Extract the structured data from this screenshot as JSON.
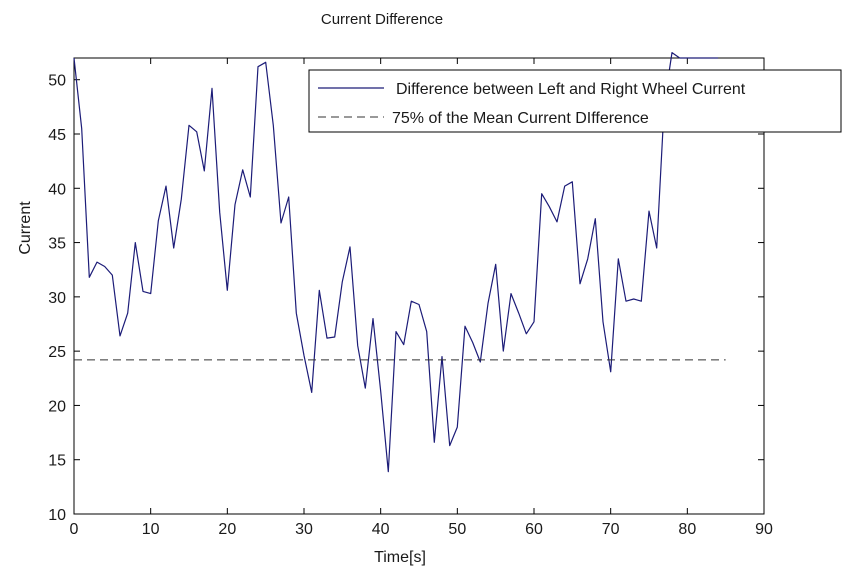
{
  "chart_data": {
    "type": "line",
    "title": "Current Difference",
    "xlabel": "Time[s]",
    "ylabel": "Current",
    "xlim": [
      0,
      90
    ],
    "ylim": [
      10,
      52
    ],
    "xticks": [
      0,
      10,
      20,
      30,
      40,
      50,
      60,
      70,
      80,
      90
    ],
    "yticks": [
      10,
      15,
      20,
      25,
      30,
      35,
      40,
      45,
      50
    ],
    "grid": false,
    "legend_position": "top-right",
    "series": [
      {
        "name": "Difference between Left and Right Wheel Current",
        "style": "solid",
        "color": "#1c1c78",
        "x": [
          0,
          1,
          2,
          3,
          4,
          5,
          6,
          7,
          8,
          9,
          10,
          11,
          12,
          13,
          14,
          15,
          16,
          17,
          18,
          19,
          20,
          21,
          22,
          23,
          24,
          25,
          26,
          27,
          28,
          29,
          30,
          31,
          32,
          33,
          34,
          35,
          36,
          37,
          38,
          39,
          40,
          41,
          42,
          43,
          44,
          45,
          46,
          47,
          48,
          49,
          50,
          51,
          52,
          53,
          54,
          55,
          56,
          57,
          58,
          59,
          60,
          61,
          62,
          63,
          64,
          65,
          66,
          67,
          68,
          69,
          70,
          71,
          72,
          73,
          74,
          75,
          76,
          77,
          78,
          79,
          80,
          81,
          82,
          83,
          84
        ],
        "y": [
          52,
          45.5,
          31.8,
          33.2,
          32.8,
          32,
          26.4,
          28.5,
          35,
          30.5,
          30.3,
          37,
          40.2,
          34.5,
          39,
          45.8,
          45.2,
          41.6,
          49.2,
          37.8,
          30.6,
          38.5,
          41.7,
          39.2,
          51.2,
          51.6,
          45.8,
          36.8,
          39.2,
          28.5,
          24.6,
          21.2,
          30.6,
          26.2,
          26.3,
          31.4,
          34.6,
          25.5,
          21.6,
          28,
          21.3,
          13.9,
          26.8,
          25.6,
          29.6,
          29.3,
          26.8,
          16.6,
          24.5,
          16.3,
          18,
          27.3,
          25.8,
          24,
          29.4,
          33,
          25,
          30.3,
          28.5,
          26.6,
          27.7,
          39.5,
          38.3,
          36.9,
          40.2,
          40.6,
          31.2,
          33.5,
          37.2,
          27.7,
          23.1,
          33.5,
          29.6,
          29.8,
          29.6,
          37.9,
          34.5,
          47.8,
          52.5,
          52,
          52,
          52,
          52,
          52,
          52
        ]
      },
      {
        "name": "75% of the Mean Current DIfference",
        "style": "dashed",
        "color": "#333333",
        "x": [
          0,
          85
        ],
        "y": [
          24.2,
          24.2
        ]
      }
    ]
  }
}
